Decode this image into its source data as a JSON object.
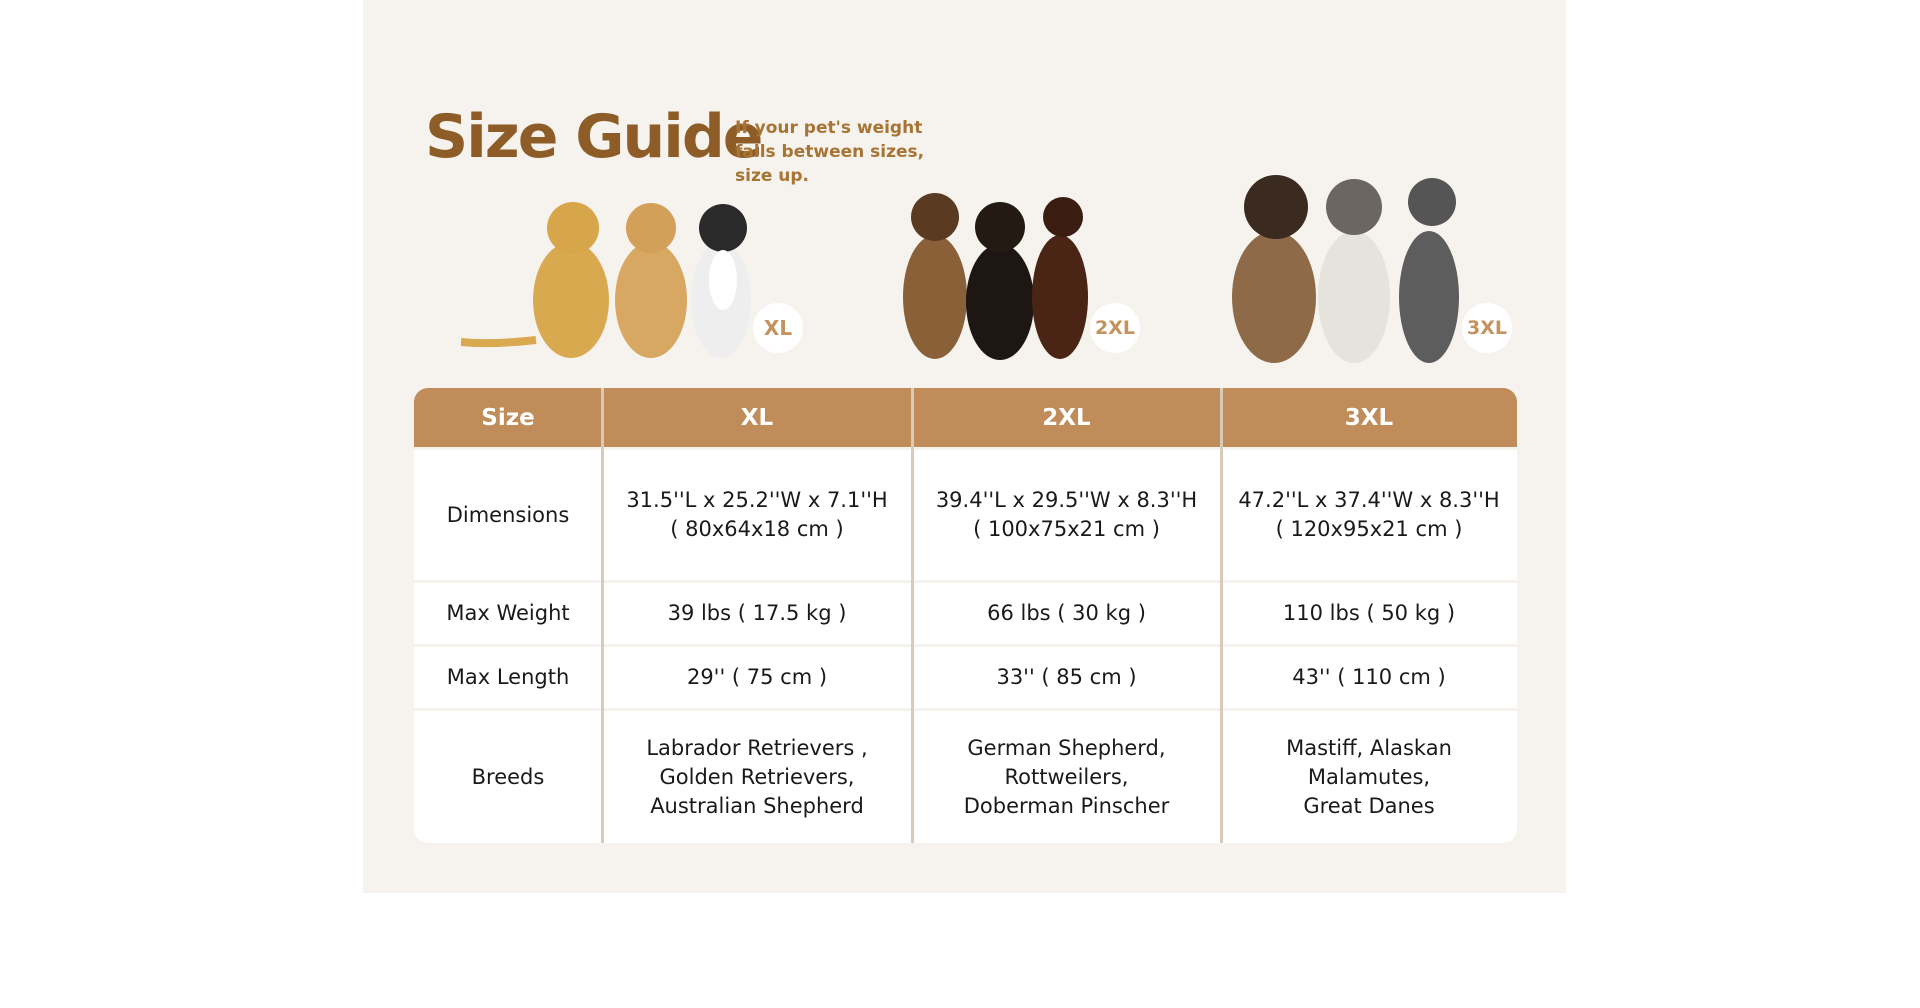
{
  "header": {
    "title": "Size Guide",
    "subtitle": "If your pet's weight falls between sizes, size up."
  },
  "badges": [
    "XL",
    "2XL",
    "3XL"
  ],
  "colors": {
    "brand": "#8e5d27",
    "header_bg": "#c08c5a",
    "panel_bg": "#f6f3ef"
  },
  "table": {
    "columns": [
      "Size",
      "XL",
      "2XL",
      "3XL"
    ],
    "rows": [
      {
        "label": "Dimensions",
        "values": [
          "31.5''L x 25.2''W x 7.1''H\n( 80x64x18 cm )",
          "39.4''L x 29.5''W x 8.3''H\n( 100x75x21 cm )",
          "47.2''L x 37.4''W x 8.3''H\n( 120x95x21 cm )"
        ]
      },
      {
        "label": "Max Weight",
        "values": [
          "39 lbs ( 17.5 kg )",
          "66 lbs ( 30 kg )",
          "110 lbs ( 50 kg )"
        ]
      },
      {
        "label": "Max Length",
        "values": [
          "29'' ( 75 cm )",
          "33'' ( 85 cm )",
          "43'' ( 110 cm )"
        ]
      },
      {
        "label": "Breeds",
        "values": [
          "Labrador Retrievers ,\nGolden Retrievers,\nAustralian Shepherd",
          "German Shepherd,\nRottweilers,\nDoberman Pinscher",
          "Mastiff, Alaskan\nMalamutes,\nGreat Danes"
        ]
      }
    ]
  }
}
